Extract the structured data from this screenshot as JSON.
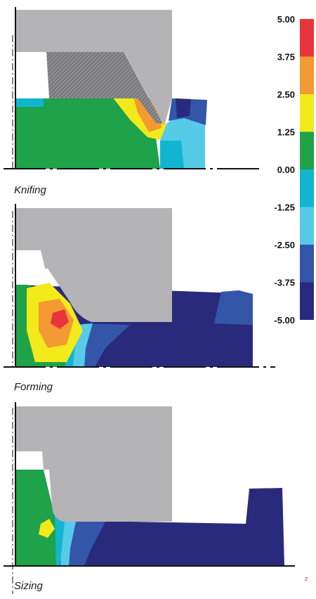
{
  "panels": [
    {
      "id": "knifing",
      "label": "Knifing"
    },
    {
      "id": "forming",
      "label": "Forming"
    },
    {
      "id": "sizing",
      "label": "Sizing"
    }
  ],
  "color_scale": {
    "tick_labels": [
      "5.00",
      "3.75",
      "2.50",
      "1.25",
      "0.00",
      "-1.25",
      "-2.50",
      "-3.75",
      "-5.00"
    ],
    "bands": [
      "#e8343c",
      "#f49a32",
      "#f2ea1b",
      "#1ea24a",
      "#12b5cf",
      "#55cbe8",
      "#3456a8",
      "#2a2a7c"
    ]
  },
  "axis_tag": "z",
  "colors": {
    "tool": "#b4b4b6",
    "tool_hatch": "#7a7a7c",
    "axis": "#111111"
  }
}
